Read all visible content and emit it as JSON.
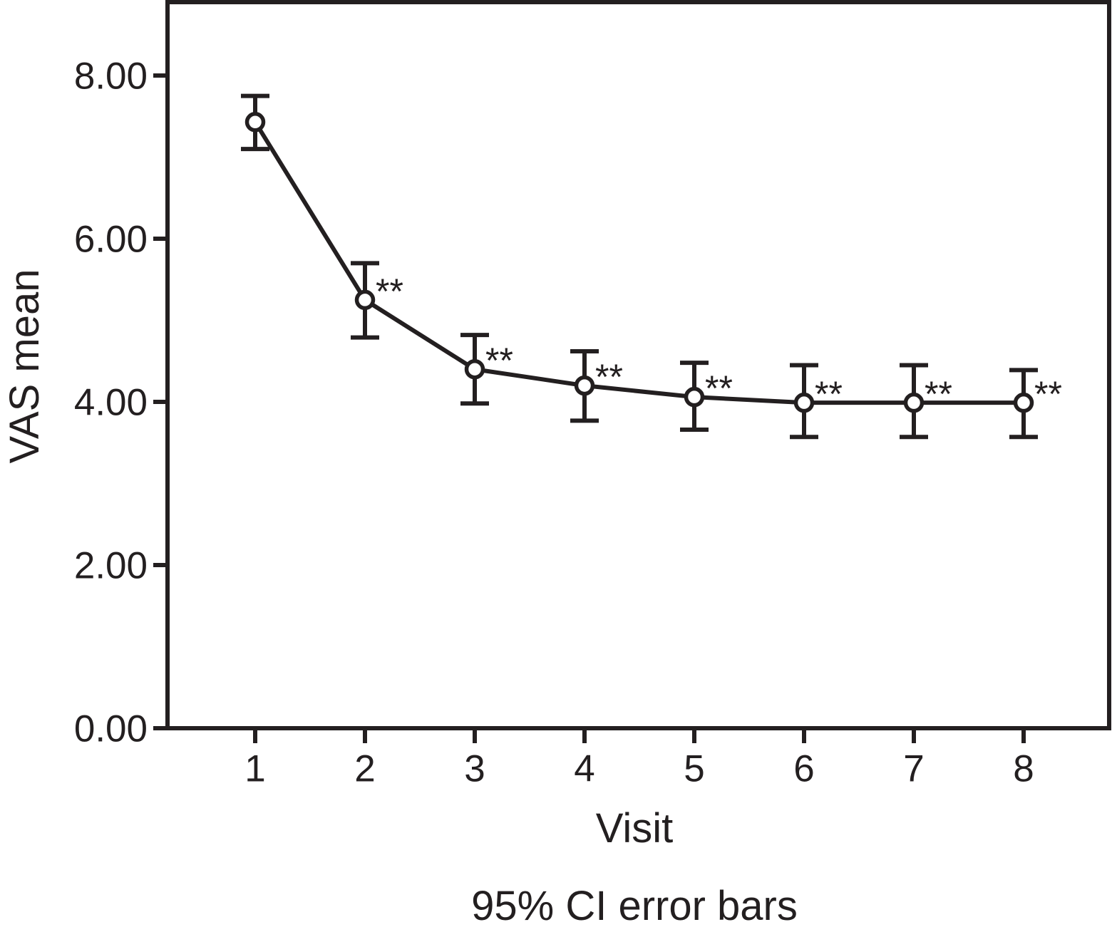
{
  "chart_data": {
    "type": "line",
    "title": "",
    "xlabel": "Visit",
    "ylabel": "VAS mean",
    "caption": "95% CI error bars",
    "categories": [
      "1",
      "2",
      "3",
      "4",
      "5",
      "6",
      "7",
      "8"
    ],
    "series": [
      {
        "name": "VAS mean",
        "values": [
          7.43,
          5.25,
          4.4,
          4.2,
          4.06,
          3.99,
          3.99,
          3.99
        ],
        "ci_low": [
          7.1,
          4.79,
          3.98,
          3.77,
          3.66,
          3.57,
          3.57,
          3.57
        ],
        "ci_high": [
          7.75,
          5.7,
          4.82,
          4.62,
          4.48,
          4.45,
          4.45,
          4.39
        ],
        "significance": [
          "",
          "**",
          "**",
          "**",
          "**",
          "**",
          "**",
          "**"
        ]
      }
    ],
    "ylim": [
      0,
      8.9
    ],
    "yticks": [
      0,
      2,
      4,
      6,
      8
    ],
    "ytick_labels": [
      "0.00",
      "2.00",
      "4.00",
      "6.00",
      "8.00"
    ],
    "grid": false,
    "legend_position": "none",
    "marker": "open-circle",
    "error_bar_type": "95% CI",
    "ink_color": "#231f20",
    "background_color": "#ffffff"
  }
}
